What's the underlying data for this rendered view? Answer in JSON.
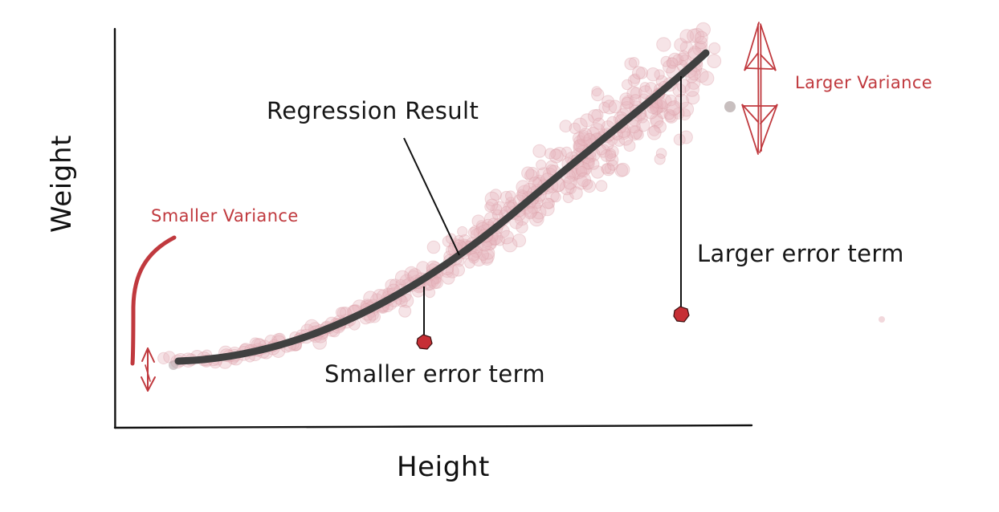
{
  "diagram": {
    "x_axis_label": "Height",
    "y_axis_label": "Weight",
    "regression_label": "Regression Result",
    "larger_variance_label": "Larger Variance",
    "smaller_variance_label": "Smaller Variance",
    "larger_error_label": "Larger error term",
    "smaller_error_label": "Smaller error term"
  },
  "colors": {
    "annotation_red": "#c0393e",
    "curve": "#404040",
    "points": "#e7b8bf",
    "error_point": "#c62f35",
    "ink": "#111111"
  }
}
